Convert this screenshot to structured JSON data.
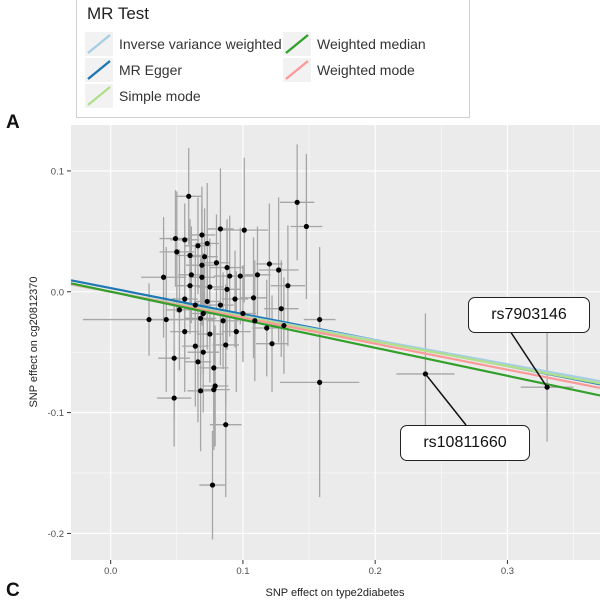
{
  "panel_labels": {
    "top": "A",
    "bottom": "C"
  },
  "legend": {
    "title": "MR Test",
    "items": [
      {
        "label": "Inverse variance weighted",
        "color": "#a6cee3"
      },
      {
        "label": "Weighted median",
        "color": "#33a02c"
      },
      {
        "label": "MR Egger",
        "color": "#1f78b4"
      },
      {
        "label": "Weighted mode",
        "color": "#fb9a99"
      },
      {
        "label": "Simple mode",
        "color": "#b2df8a"
      }
    ]
  },
  "callouts": [
    {
      "label": "rs7903146",
      "point": [
        0.33,
        -0.079
      ]
    },
    {
      "label": "rs10811660",
      "point": [
        0.238,
        -0.068
      ]
    }
  ],
  "chart_data": {
    "type": "scatter",
    "title": "",
    "xlabel": "SNP effect on type2diabetes",
    "ylabel": "SNP effect on cg20812370",
    "xlim": [
      -0.03,
      0.37
    ],
    "ylim": [
      -0.222,
      0.138
    ],
    "xticks": [
      0.0,
      0.1,
      0.2,
      0.3
    ],
    "xtick_labels": [
      "0.0",
      "0.1",
      "0.2",
      "0.3"
    ],
    "yticks": [
      0.1,
      0.0,
      -0.1,
      -0.2
    ],
    "ytick_labels": [
      "0.1",
      "0.0",
      "-0.1",
      "-0.2"
    ],
    "grid": true,
    "background": "#ebebeb",
    "lines": [
      {
        "name": "MR Egger",
        "color": "#1f78b4",
        "intercept": 0.003,
        "slope": -0.215
      },
      {
        "name": "Inverse variance weighted",
        "color": "#a6cee3",
        "intercept": 0.0,
        "slope": -0.2
      },
      {
        "name": "Simple mode",
        "color": "#b2df8a",
        "intercept": 0.0,
        "slope": -0.205
      },
      {
        "name": "Weighted mode",
        "color": "#fb9a99",
        "intercept": 0.0,
        "slope": -0.215
      },
      {
        "name": "Weighted median",
        "color": "#33a02c",
        "intercept": 0.0,
        "slope": -0.232
      }
    ],
    "points": [
      {
        "x": 0.059,
        "y": 0.079,
        "xerr": 0.01,
        "yerr": 0.04
      },
      {
        "x": 0.141,
        "y": 0.074,
        "xerr": 0.013,
        "yerr": 0.048
      },
      {
        "x": 0.148,
        "y": 0.054,
        "xerr": 0.012,
        "yerr": 0.06
      },
      {
        "x": 0.083,
        "y": 0.052,
        "xerr": 0.01,
        "yerr": 0.05
      },
      {
        "x": 0.101,
        "y": 0.051,
        "xerr": 0.018,
        "yerr": 0.06
      },
      {
        "x": 0.069,
        "y": 0.047,
        "xerr": 0.01,
        "yerr": 0.04
      },
      {
        "x": 0.049,
        "y": 0.044,
        "xerr": 0.012,
        "yerr": 0.04
      },
      {
        "x": 0.056,
        "y": 0.043,
        "xerr": 0.011,
        "yerr": 0.03
      },
      {
        "x": 0.073,
        "y": 0.04,
        "xerr": 0.009,
        "yerr": 0.05
      },
      {
        "x": 0.066,
        "y": 0.038,
        "xerr": 0.01,
        "yerr": 0.04
      },
      {
        "x": 0.05,
        "y": 0.033,
        "xerr": 0.013,
        "yerr": 0.05
      },
      {
        "x": 0.06,
        "y": 0.03,
        "xerr": 0.01,
        "yerr": 0.03
      },
      {
        "x": 0.071,
        "y": 0.029,
        "xerr": 0.01,
        "yerr": 0.04
      },
      {
        "x": 0.08,
        "y": 0.024,
        "xerr": 0.01,
        "yerr": 0.04
      },
      {
        "x": 0.069,
        "y": 0.022,
        "xerr": 0.012,
        "yerr": 0.05
      },
      {
        "x": 0.088,
        "y": 0.02,
        "xerr": 0.013,
        "yerr": 0.04
      },
      {
        "x": 0.12,
        "y": 0.023,
        "xerr": 0.01,
        "yerr": 0.05
      },
      {
        "x": 0.061,
        "y": 0.014,
        "xerr": 0.01,
        "yerr": 0.04
      },
      {
        "x": 0.09,
        "y": 0.013,
        "xerr": 0.012,
        "yerr": 0.05
      },
      {
        "x": 0.111,
        "y": 0.014,
        "xerr": 0.01,
        "yerr": 0.04
      },
      {
        "x": 0.127,
        "y": 0.018,
        "xerr": 0.015,
        "yerr": 0.06
      },
      {
        "x": 0.04,
        "y": 0.012,
        "xerr": 0.017,
        "yerr": 0.05
      },
      {
        "x": 0.069,
        "y": 0.012,
        "xerr": 0.01,
        "yerr": 0.04
      },
      {
        "x": 0.098,
        "y": 0.013,
        "xerr": 0.01,
        "yerr": 0.04
      },
      {
        "x": 0.06,
        "y": 0.005,
        "xerr": 0.01,
        "yerr": 0.04
      },
      {
        "x": 0.075,
        "y": 0.004,
        "xerr": 0.01,
        "yerr": 0.04
      },
      {
        "x": 0.088,
        "y": 0.002,
        "xerr": 0.01,
        "yerr": 0.05
      },
      {
        "x": 0.134,
        "y": 0.005,
        "xerr": 0.013,
        "yerr": 0.05
      },
      {
        "x": 0.056,
        "y": -0.006,
        "xerr": 0.01,
        "yerr": 0.05
      },
      {
        "x": 0.073,
        "y": -0.008,
        "xerr": 0.01,
        "yerr": 0.04
      },
      {
        "x": 0.094,
        "y": -0.006,
        "xerr": 0.01,
        "yerr": 0.04
      },
      {
        "x": 0.108,
        "y": -0.005,
        "xerr": 0.01,
        "yerr": 0.05
      },
      {
        "x": 0.064,
        "y": -0.011,
        "xerr": 0.01,
        "yerr": 0.05
      },
      {
        "x": 0.083,
        "y": -0.011,
        "xerr": 0.01,
        "yerr": 0.05
      },
      {
        "x": 0.129,
        "y": -0.014,
        "xerr": 0.013,
        "yerr": 0.04
      },
      {
        "x": 0.052,
        "y": -0.015,
        "xerr": 0.01,
        "yerr": 0.05
      },
      {
        "x": 0.07,
        "y": -0.018,
        "xerr": 0.01,
        "yerr": 0.05
      },
      {
        "x": 0.1,
        "y": -0.018,
        "xerr": 0.01,
        "yerr": 0.04
      },
      {
        "x": 0.029,
        "y": -0.023,
        "xerr": 0.05,
        "yerr": 0.03
      },
      {
        "x": 0.042,
        "y": -0.023,
        "xerr": 0.012,
        "yerr": 0.06
      },
      {
        "x": 0.068,
        "y": -0.022,
        "xerr": 0.012,
        "yerr": 0.05
      },
      {
        "x": 0.085,
        "y": -0.024,
        "xerr": 0.012,
        "yerr": 0.04
      },
      {
        "x": 0.109,
        "y": -0.024,
        "xerr": 0.01,
        "yerr": 0.05
      },
      {
        "x": 0.118,
        "y": -0.03,
        "xerr": 0.011,
        "yerr": 0.04
      },
      {
        "x": 0.131,
        "y": -0.028,
        "xerr": 0.012,
        "yerr": 0.04
      },
      {
        "x": 0.158,
        "y": -0.023,
        "xerr": 0.012,
        "yerr": 0.06
      },
      {
        "x": 0.056,
        "y": -0.033,
        "xerr": 0.011,
        "yerr": 0.05
      },
      {
        "x": 0.075,
        "y": -0.035,
        "xerr": 0.01,
        "yerr": 0.04
      },
      {
        "x": 0.095,
        "y": -0.033,
        "xerr": 0.011,
        "yerr": 0.05
      },
      {
        "x": 0.064,
        "y": -0.045,
        "xerr": 0.01,
        "yerr": 0.05
      },
      {
        "x": 0.087,
        "y": -0.044,
        "xerr": 0.01,
        "yerr": 0.05
      },
      {
        "x": 0.122,
        "y": -0.043,
        "xerr": 0.012,
        "yerr": 0.04
      },
      {
        "x": 0.07,
        "y": -0.05,
        "xerr": 0.012,
        "yerr": 0.05
      },
      {
        "x": 0.048,
        "y": -0.055,
        "xerr": 0.012,
        "yerr": 0.05
      },
      {
        "x": 0.066,
        "y": -0.058,
        "xerr": 0.01,
        "yerr": 0.05
      },
      {
        "x": 0.078,
        "y": -0.063,
        "xerr": 0.011,
        "yerr": 0.05
      },
      {
        "x": 0.158,
        "y": -0.075,
        "xerr": 0.03,
        "yerr": 0.095
      },
      {
        "x": 0.079,
        "y": -0.078,
        "xerr": 0.01,
        "yerr": 0.05
      },
      {
        "x": 0.078,
        "y": -0.081,
        "xerr": 0.012,
        "yerr": 0.05
      },
      {
        "x": 0.068,
        "y": -0.082,
        "xerr": 0.01,
        "yerr": 0.05
      },
      {
        "x": 0.048,
        "y": -0.088,
        "xerr": 0.013,
        "yerr": 0.04
      },
      {
        "x": 0.087,
        "y": -0.11,
        "xerr": 0.012,
        "yerr": 0.06
      },
      {
        "x": 0.077,
        "y": -0.16,
        "xerr": 0.01,
        "yerr": 0.045
      },
      {
        "x": 0.238,
        "y": -0.068,
        "xerr": 0.022,
        "yerr": 0.05
      },
      {
        "x": 0.33,
        "y": -0.079,
        "xerr": 0.02,
        "yerr": 0.045
      }
    ]
  }
}
